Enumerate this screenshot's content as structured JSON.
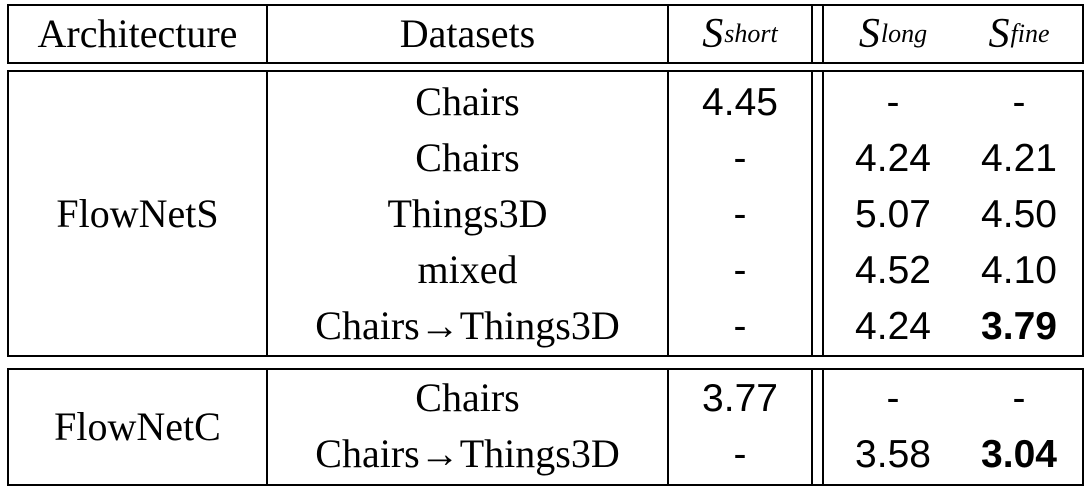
{
  "table": {
    "header": {
      "architecture": "Architecture",
      "datasets": "Datasets",
      "s_short": {
        "symbol": "S",
        "sub": "short"
      },
      "s_long": {
        "symbol": "S",
        "sub": "long"
      },
      "s_fine": {
        "symbol": "S",
        "sub": "fine"
      }
    },
    "groups": [
      {
        "architecture": "FlowNetS",
        "rows": [
          {
            "dataset": "Chairs",
            "s_short": "4.45",
            "s_long": "-",
            "s_fine": "-"
          },
          {
            "dataset": "Chairs",
            "s_short": "-",
            "s_long": "4.24",
            "s_fine": "4.21"
          },
          {
            "dataset": "Things3D",
            "s_short": "-",
            "s_long": "5.07",
            "s_fine": "4.50"
          },
          {
            "dataset": "mixed",
            "s_short": "-",
            "s_long": "4.52",
            "s_fine": "4.10"
          },
          {
            "dataset": "Chairs→Things3D",
            "s_short": "-",
            "s_long": "4.24",
            "s_fine": "3.79",
            "s_fine_bold": true
          }
        ]
      },
      {
        "architecture": "FlowNetC",
        "rows": [
          {
            "dataset": "Chairs",
            "s_short": "3.77",
            "s_long": "-",
            "s_fine": "-"
          },
          {
            "dataset": "Chairs→Things3D",
            "s_short": "-",
            "s_long": "3.58",
            "s_fine": "3.04",
            "s_fine_bold": true
          }
        ]
      }
    ]
  }
}
